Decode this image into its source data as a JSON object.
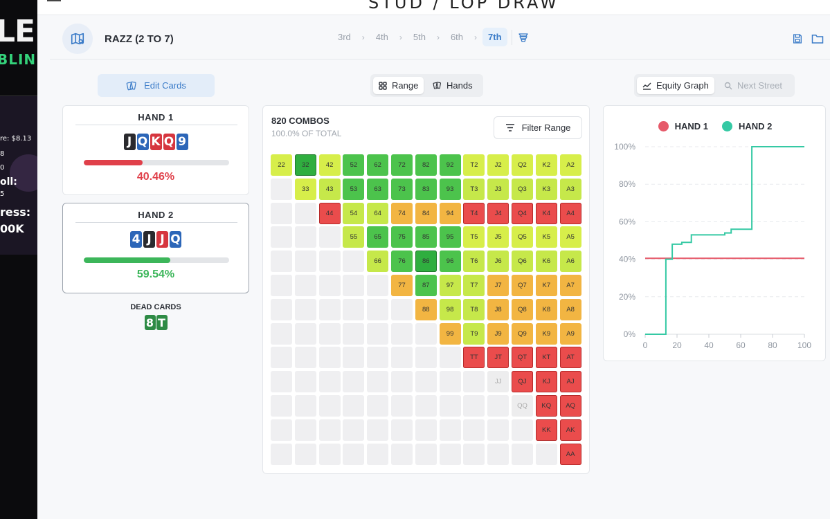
{
  "overlay": {
    "logo_line1": "LER",
    "logo_line2": "BLIN",
    "line1": "re: $8.13",
    "line2": "8",
    "line3": "0",
    "line4": "oll:",
    "line5": "5",
    "line6": "ress:",
    "line7": "00K"
  },
  "app": {
    "title": "STUD / LOP DRAW"
  },
  "header": {
    "game": "RAZZ (2 TO 7)",
    "streets": [
      "3rd",
      "4th",
      "5th",
      "6th",
      "7th"
    ],
    "active_street": "7th"
  },
  "toolbar": {
    "edit_cards": "Edit Cards",
    "range": "Range",
    "hands": "Hands",
    "equity_graph": "Equity Graph",
    "next_street": "Next Street"
  },
  "hands": [
    {
      "title": "HAND 1",
      "cards": [
        {
          "rank": "J",
          "suit": "s"
        },
        {
          "rank": "Q",
          "suit": "d"
        },
        {
          "rank": "K",
          "suit": "h"
        },
        {
          "rank": "Q",
          "suit": "h"
        },
        {
          "rank": "9",
          "suit": "d"
        }
      ],
      "equity_text": "40.46%",
      "equity": 40.46,
      "color": "#e0404a"
    },
    {
      "title": "HAND 2",
      "cards": [
        {
          "rank": "4",
          "suit": "d"
        },
        {
          "rank": "J",
          "suit": "s"
        },
        {
          "rank": "J",
          "suit": "h"
        },
        {
          "rank": "Q",
          "suit": "d"
        }
      ],
      "equity_text": "59.54%",
      "equity": 59.54,
      "color": "#3cb65a"
    }
  ],
  "dead": {
    "label": "DEAD CARDS",
    "cards": [
      {
        "rank": "8",
        "suit": "c"
      },
      {
        "rank": "T",
        "suit": "c"
      }
    ]
  },
  "range": {
    "combos": "820 COMBOS",
    "subtitle": "100.0% OF TOTAL",
    "filter": "Filter Range",
    "rows": [
      [
        [
          "22",
          "ly"
        ],
        [
          "32",
          "dg"
        ],
        [
          "42",
          "ly"
        ],
        [
          "52",
          "g"
        ],
        [
          "62",
          "g"
        ],
        [
          "72",
          "g"
        ],
        [
          "82",
          "g"
        ],
        [
          "92",
          "g"
        ],
        [
          "T2",
          "ly"
        ],
        [
          "J2",
          "ly"
        ],
        [
          "Q2",
          "ly"
        ],
        [
          "K2",
          "ly"
        ],
        [
          "A2",
          "ly"
        ]
      ],
      [
        null,
        [
          "33",
          "ly"
        ],
        [
          "43",
          "y"
        ],
        [
          "53",
          "g"
        ],
        [
          "63",
          "g"
        ],
        [
          "73",
          "g"
        ],
        [
          "83",
          "g"
        ],
        [
          "93",
          "g"
        ],
        [
          "T3",
          "y"
        ],
        [
          "J3",
          "y"
        ],
        [
          "Q3",
          "y"
        ],
        [
          "K3",
          "y"
        ],
        [
          "A3",
          "y"
        ]
      ],
      [
        null,
        null,
        [
          "44",
          "r"
        ],
        [
          "54",
          "y"
        ],
        [
          "64",
          "y"
        ],
        [
          "74",
          "o"
        ],
        [
          "84",
          "o"
        ],
        [
          "94",
          "o"
        ],
        [
          "T4",
          "r"
        ],
        [
          "J4",
          "r"
        ],
        [
          "Q4",
          "r"
        ],
        [
          "K4",
          "r"
        ],
        [
          "A4",
          "r"
        ]
      ],
      [
        null,
        null,
        null,
        [
          "55",
          "y"
        ],
        [
          "65",
          "g"
        ],
        [
          "75",
          "g"
        ],
        [
          "85",
          "g"
        ],
        [
          "95",
          "g"
        ],
        [
          "T5",
          "ly"
        ],
        [
          "J5",
          "ly"
        ],
        [
          "Q5",
          "ly"
        ],
        [
          "K5",
          "ly"
        ],
        [
          "A5",
          "ly"
        ]
      ],
      [
        null,
        null,
        null,
        null,
        [
          "66",
          "y"
        ],
        [
          "76",
          "g"
        ],
        [
          "86",
          "dg"
        ],
        [
          "96",
          "g"
        ],
        [
          "T6",
          "y"
        ],
        [
          "J6",
          "y"
        ],
        [
          "Q6",
          "y"
        ],
        [
          "K6",
          "y"
        ],
        [
          "A6",
          "y"
        ]
      ],
      [
        null,
        null,
        null,
        null,
        null,
        [
          "77",
          "o"
        ],
        [
          "87",
          "g"
        ],
        [
          "97",
          "y"
        ],
        [
          "T7",
          "y"
        ],
        [
          "J7",
          "o"
        ],
        [
          "Q7",
          "o"
        ],
        [
          "K7",
          "o"
        ],
        [
          "A7",
          "o"
        ]
      ],
      [
        null,
        null,
        null,
        null,
        null,
        null,
        [
          "88",
          "o"
        ],
        [
          "98",
          "y"
        ],
        [
          "T8",
          "y"
        ],
        [
          "J8",
          "o"
        ],
        [
          "Q8",
          "o"
        ],
        [
          "K8",
          "o"
        ],
        [
          "A8",
          "o"
        ]
      ],
      [
        null,
        null,
        null,
        null,
        null,
        null,
        null,
        [
          "99",
          "o"
        ],
        [
          "T9",
          "y"
        ],
        [
          "J9",
          "o"
        ],
        [
          "Q9",
          "o"
        ],
        [
          "K9",
          "o"
        ],
        [
          "A9",
          "o"
        ]
      ],
      [
        null,
        null,
        null,
        null,
        null,
        null,
        null,
        null,
        [
          "TT",
          "r"
        ],
        [
          "JT",
          "r"
        ],
        [
          "QT",
          "r"
        ],
        [
          "KT",
          "r"
        ],
        [
          "AT",
          "r"
        ]
      ],
      [
        null,
        null,
        null,
        null,
        null,
        null,
        null,
        null,
        null,
        [
          "JJ",
          "e"
        ],
        [
          "QJ",
          "r"
        ],
        [
          "KJ",
          "r"
        ],
        [
          "AJ",
          "r"
        ]
      ],
      [
        null,
        null,
        null,
        null,
        null,
        null,
        null,
        null,
        null,
        null,
        [
          "QQ",
          "e"
        ],
        [
          "KQ",
          "r"
        ],
        [
          "AQ",
          "r"
        ]
      ],
      [
        null,
        null,
        null,
        null,
        null,
        null,
        null,
        null,
        null,
        null,
        null,
        [
          "KK",
          "r"
        ],
        [
          "AK",
          "r"
        ]
      ],
      [
        null,
        null,
        null,
        null,
        null,
        null,
        null,
        null,
        null,
        null,
        null,
        null,
        [
          "AA",
          "r"
        ]
      ]
    ]
  },
  "colors": {
    "dg": "#2fae3f",
    "g": "#4cc34c",
    "ly": "#d7ee4a",
    "y": "#c6e84a",
    "o": "#f2b542",
    "r": "#ea4c4c",
    "e": "#ededee",
    "empty": "#efeff1",
    "hand1_line": "#e65a6a",
    "hand2_line": "#35c9a4"
  },
  "chart_data": {
    "type": "line",
    "title": "",
    "legend": [
      "HAND 1",
      "HAND 2"
    ],
    "xlim": [
      0,
      100
    ],
    "ylim": [
      0,
      100
    ],
    "x_ticks": [
      "0",
      "20",
      "40",
      "60",
      "80",
      "100"
    ],
    "y_ticks": [
      "0%",
      "20%",
      "40%",
      "60%",
      "80%",
      "100%"
    ],
    "series": [
      {
        "name": "HAND 1",
        "points": [
          [
            0,
            40.5
          ],
          [
            100,
            40.5
          ]
        ]
      },
      {
        "name": "HAND 2",
        "points": [
          [
            0,
            0
          ],
          [
            13,
            0
          ],
          [
            13,
            40
          ],
          [
            17,
            40
          ],
          [
            17,
            48
          ],
          [
            23,
            48
          ],
          [
            23,
            49
          ],
          [
            29,
            49
          ],
          [
            29,
            53
          ],
          [
            50,
            53
          ],
          [
            50,
            54
          ],
          [
            54,
            54
          ],
          [
            54,
            56
          ],
          [
            67,
            56
          ],
          [
            67,
            100
          ],
          [
            100,
            100
          ]
        ]
      }
    ]
  }
}
